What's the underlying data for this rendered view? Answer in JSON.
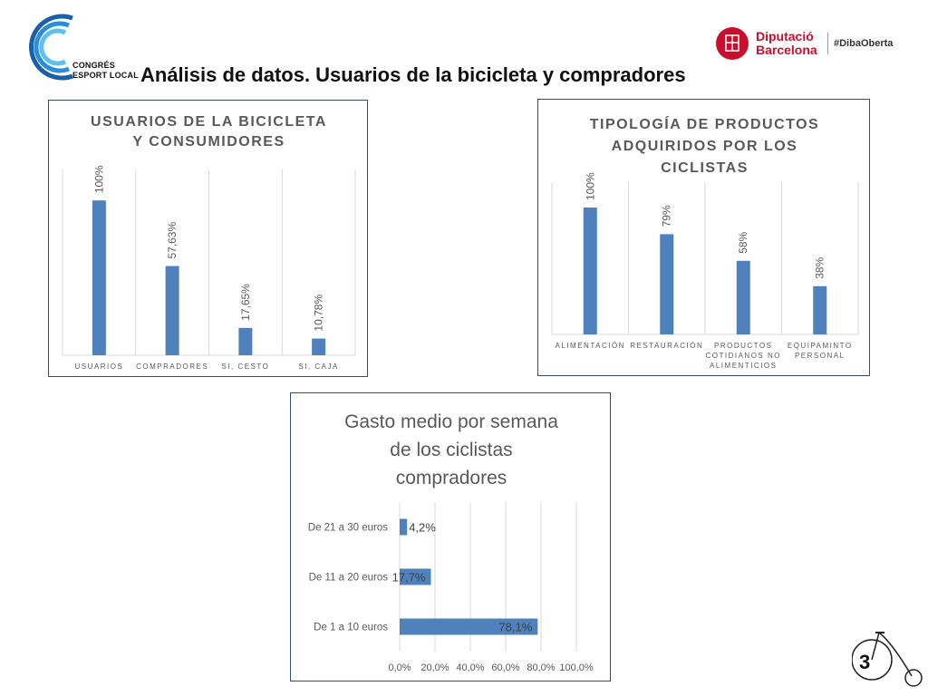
{
  "header": {
    "logo_left_text": "CONGRÉS\nESPORT LOCAL",
    "title": "Análisis de datos. Usuarios de la bicicleta y compradores",
    "logo_right_name": "Diputació\nBarcelona",
    "logo_right_tag": "#DibaOberta"
  },
  "slide_number": "3",
  "colors": {
    "bar": "#4f81bd",
    "frame": "#2f4e7d",
    "title_gray": "#595959",
    "grid": "#d9d9d9",
    "brand_red": "#c8102e"
  },
  "chart_data": [
    {
      "type": "bar",
      "title": "USUARIOS DE LA BICICLETA Y CONSUMIDORES",
      "categories": [
        "USUARIOS",
        "COMPRADORES",
        "SI, CESTO",
        "SI, CAJA"
      ],
      "values": [
        100,
        57.63,
        17.65,
        10.78
      ],
      "labels": [
        "100%",
        "57,63%",
        "17,65%",
        "10,78%"
      ],
      "ylim": [
        0,
        120
      ],
      "grid": "vertical separators",
      "legend": "none"
    },
    {
      "type": "bar",
      "title": "TIPOLOGÍA DE PRODUCTOS ADQUIRIDOS POR LOS CICLISTAS",
      "categories": [
        "ALIMENTACIÓN",
        "RESTAURACIÓN",
        "PRODUCTOS COTIDIANOS NO ALIMENTICIOS",
        "EQUIPAMINTO PERSONAL"
      ],
      "values": [
        100,
        79,
        58,
        38
      ],
      "labels": [
        "100%",
        "79%",
        "58%",
        "38%"
      ],
      "ylim": [
        0,
        120
      ],
      "grid": "vertical separators",
      "legend": "none"
    },
    {
      "type": "bar",
      "orientation": "horizontal",
      "title": "Gasto medio por semana de los ciclistas compradores",
      "categories": [
        "De 21 a 30 euros",
        "De 11 a 20 euros",
        "De 1 a 10 euros"
      ],
      "values": [
        4.2,
        17.7,
        78.1
      ],
      "labels": [
        "4,2%",
        "17,7%",
        "78,1%"
      ],
      "xlim": [
        0,
        100
      ],
      "x_ticks": [
        "0,0%",
        "20,0%",
        "40,0%",
        "60,0%",
        "80,0%",
        "100,0%"
      ],
      "grid": "vertical",
      "legend": "none"
    }
  ]
}
